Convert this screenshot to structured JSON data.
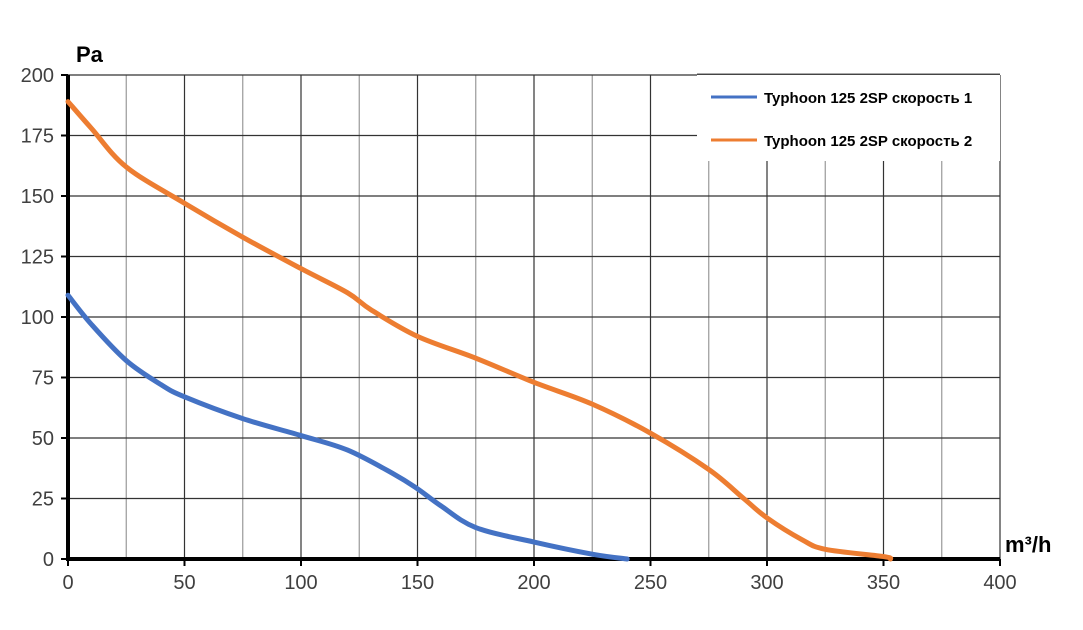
{
  "chart_data": {
    "type": "line",
    "xlabel": "m³/h",
    "ylabel": "Pa",
    "xlim": [
      0,
      400
    ],
    "ylim": [
      0,
      200
    ],
    "xticks": [
      0,
      50,
      100,
      150,
      200,
      250,
      300,
      350,
      400
    ],
    "yticks": [
      0,
      25,
      50,
      75,
      100,
      125,
      150,
      175,
      200
    ],
    "grid": true,
    "legend": "top-right",
    "series": [
      {
        "name": "Typhoon 125 2SP скорость 1",
        "color": "#4472C4",
        "x": [
          0,
          10,
          25,
          40,
          50,
          75,
          100,
          120,
          140,
          150,
          160,
          175,
          200,
          225,
          240
        ],
        "y": [
          109,
          97,
          82,
          72,
          67,
          58,
          51,
          45,
          35,
          29,
          22,
          13,
          7,
          2,
          0
        ]
      },
      {
        "name": "Typhoon 125 2SP скорость 2",
        "color": "#ED7D31",
        "x": [
          0,
          10,
          25,
          50,
          75,
          100,
          120,
          130,
          150,
          175,
          200,
          225,
          250,
          275,
          290,
          300,
          315,
          325,
          350,
          353
        ],
        "y": [
          189,
          178,
          162,
          147,
          133,
          120,
          110,
          103,
          92,
          83,
          73,
          64,
          52,
          37,
          25,
          17,
          8,
          4,
          1,
          0
        ]
      }
    ]
  }
}
